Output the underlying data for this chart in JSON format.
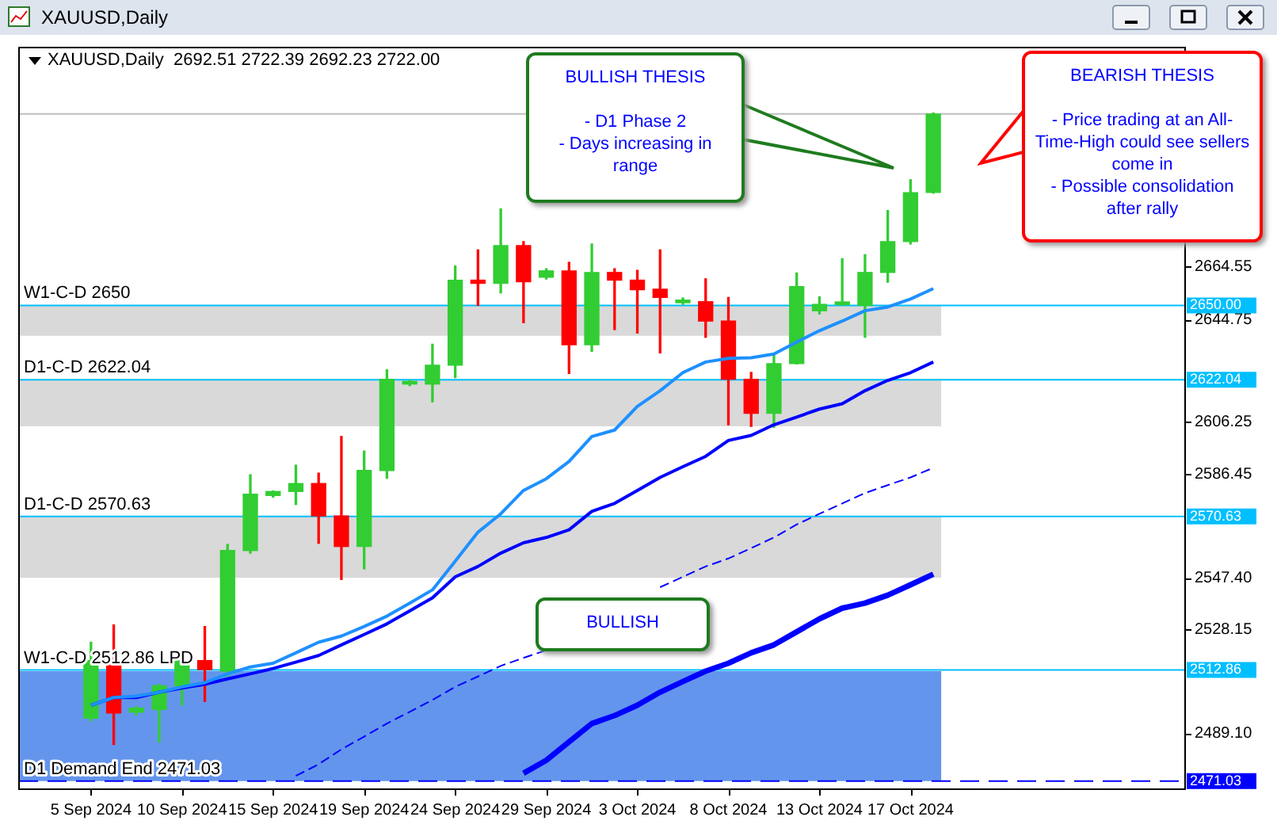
{
  "chart_data": {
    "type": "candlestick",
    "title": "XAUUSD,Daily",
    "subtitle": "XAUUSD,Daily  2692.51 2722.39 2692.23 2722.00",
    "categories": [
      "5 Sep 2024",
      null,
      null,
      null,
      "10 Sep 2024",
      null,
      null,
      null,
      "15 Sep 2024",
      null,
      null,
      null,
      "19 Sep 2024",
      null,
      null,
      null,
      "24 Sep 2024",
      null,
      null,
      null,
      "29 Sep 2024",
      null,
      null,
      null,
      "3 Oct 2024",
      null,
      null,
      null,
      "8 Oct 2024",
      null,
      null,
      null,
      "13 Oct 2024",
      null,
      null,
      null,
      "17 Oct 2024",
      null
    ],
    "ohlc": [
      [
        2494.7,
        2523.3,
        2493.7,
        2516.4
      ],
      [
        2516.4,
        2529.8,
        2484.8,
        2496.7
      ],
      [
        2497.0,
        2499.0,
        2496.0,
        2498.5
      ],
      [
        2498.0,
        2507.5,
        2485.8,
        2506.9
      ],
      [
        2506.9,
        2516.8,
        2499.6,
        2516.4
      ],
      [
        2516.4,
        2529.2,
        2501.0,
        2513.0
      ],
      [
        2512.4,
        2560.1,
        2510.5,
        2557.8
      ],
      [
        2557.8,
        2586.3,
        2556.8,
        2579.0
      ],
      [
        2578.5,
        2580.2,
        2577.9,
        2580.0
      ],
      [
        2580.0,
        2589.9,
        2575.1,
        2583.0
      ],
      [
        2583.0,
        2586.9,
        2560.5,
        2570.8
      ],
      [
        2570.8,
        2600.7,
        2546.9,
        2559.3
      ],
      [
        2559.3,
        2595.2,
        2550.9,
        2587.9
      ],
      [
        2587.9,
        2625.8,
        2585.0,
        2622.2
      ],
      [
        2620.4,
        2621.8,
        2619.8,
        2621.4
      ],
      [
        2620.4,
        2635.4,
        2613.7,
        2627.5
      ],
      [
        2627.5,
        2664.8,
        2622.8,
        2659.5
      ],
      [
        2659.5,
        2670.9,
        2650.0,
        2658.3
      ],
      [
        2658.3,
        2686.3,
        2654.7,
        2672.5
      ],
      [
        2672.5,
        2674.0,
        2643.5,
        2658.9
      ],
      [
        2660.6,
        2663.8,
        2659.9,
        2663.0
      ],
      [
        2663.0,
        2666.2,
        2624.4,
        2635.2
      ],
      [
        2635.2,
        2673.1,
        2632.7,
        2662.4
      ],
      [
        2662.4,
        2663.8,
        2640.9,
        2659.5
      ],
      [
        2659.5,
        2663.2,
        2639.6,
        2655.9
      ],
      [
        2656.1,
        2670.9,
        2632.1,
        2653.0
      ],
      [
        2651.0,
        2652.8,
        2650.4,
        2652.0
      ],
      [
        2651.4,
        2660.0,
        2638.0,
        2644.1
      ],
      [
        2644.1,
        2653.0,
        2605.1,
        2622.2
      ],
      [
        2622.2,
        2624.8,
        2604.5,
        2609.4
      ],
      [
        2609.4,
        2631.7,
        2604.1,
        2628.1
      ],
      [
        2628.1,
        2662.2,
        2628.0,
        2657.1
      ],
      [
        2648.0,
        2653.2,
        2646.8,
        2650.4
      ],
      [
        2650.3,
        2667.6,
        2650.0,
        2651.3
      ],
      [
        2650.0,
        2669.1,
        2638.0,
        2662.4
      ],
      [
        2662.4,
        2685.7,
        2658.7,
        2674.0
      ],
      [
        2674.0,
        2697.3,
        2673.1,
        2692.4
      ],
      [
        2692.51,
        2722.39,
        2692.23,
        2722.0
      ]
    ],
    "colors": [
      "#32cd32",
      "#ff0000",
      "#32cd32",
      "#32cd32",
      "#32cd32",
      "#ff0000",
      "#32cd32",
      "#32cd32",
      "#32cd32",
      "#32cd32",
      "#ff0000",
      "#ff0000",
      "#32cd32",
      "#32cd32",
      "#32cd32",
      "#32cd32",
      "#32cd32",
      "#ff0000",
      "#32cd32",
      "#ff0000",
      "#32cd32",
      "#ff0000",
      "#32cd32",
      "#ff0000",
      "#ff0000",
      "#ff0000",
      "#32cd32",
      "#ff0000",
      "#ff0000",
      "#ff0000",
      "#32cd32",
      "#32cd32",
      "#32cd32",
      "#32cd32",
      "#32cd32",
      "#32cd32",
      "#32cd32",
      "#32cd32"
    ],
    "series": [
      {
        "type": "line",
        "color": "#1e90ff",
        "line_style": "solid",
        "values": [
          2499.6,
          2502.5,
          2503.0,
          2504.5,
          2506.5,
          2508.1,
          2511.4,
          2514.0,
          2515.4,
          2519.3,
          2523.3,
          2525.6,
          2529.2,
          2533.1,
          2538.0,
          2543.0,
          2553.8,
          2564.7,
          2571.6,
          2580.4,
          2584.8,
          2591.3,
          2600.7,
          2603.1,
          2612.0,
          2617.9,
          2624.7,
          2628.7,
          2630.1,
          2630.3,
          2631.7,
          2636.2,
          2640.5,
          2644.1,
          2648.0,
          2649.4,
          2652.4,
          2656.3
        ]
      },
      {
        "type": "line",
        "color": "#0000ff",
        "line_style": "solid",
        "values": [
          2499.6,
          2502.5,
          2502.5,
          2504.5,
          2506.1,
          2507.5,
          2509.5,
          2511.4,
          2513.4,
          2515.8,
          2518.3,
          2522.3,
          2526.2,
          2530.2,
          2535.1,
          2540.0,
          2547.9,
          2551.8,
          2556.8,
          2560.7,
          2562.7,
          2565.6,
          2572.5,
          2575.5,
          2580.4,
          2585.3,
          2589.3,
          2593.2,
          2599.2,
          2601.1,
          2605.1,
          2608.0,
          2611.0,
          2613.0,
          2617.9,
          2621.8,
          2624.7,
          2628.7
        ]
      },
      {
        "type": "line",
        "color": "#0000ff",
        "line_style": "dashed",
        "values": [
          null,
          null,
          null,
          null,
          null,
          null,
          null,
          null,
          null,
          2473.0,
          2477.4,
          2483.0,
          2487.8,
          2492.7,
          2497.1,
          2501.6,
          2506.5,
          2510.4,
          2514.4,
          2517.4,
          2520.3,
          null,
          null,
          null,
          null,
          2544.0,
          2547.9,
          2551.8,
          2554.8,
          2558.7,
          2562.7,
          2567.6,
          2571.6,
          2575.5,
          2579.4,
          2582.4,
          2585.3,
          2588.9
        ]
      },
      {
        "type": "line",
        "color": "#0000ff",
        "line_style": "solid",
        "values": [
          null,
          null,
          null,
          null,
          null,
          null,
          null,
          null,
          null,
          null,
          null,
          null,
          null,
          null,
          null,
          null,
          null,
          null,
          null,
          2474.0,
          2478.9,
          2485.8,
          2492.7,
          2495.7,
          2499.6,
          2504.5,
          2508.5,
          2512.4,
          2515.4,
          2519.3,
          2522.3,
          2527.2,
          2532.1,
          2536.1,
          2538.0,
          2541.0,
          2544.9,
          2548.9
        ]
      }
    ],
    "ylim": [
      2468,
      2747
    ],
    "yticks": [
      {
        "value": 2489.1,
        "label": "2489.10"
      },
      2528.15,
      {
        "value": 2547.4,
        "label": "2547.40"
      },
      2586.45,
      2606.25,
      2644.75,
      2664.55
    ],
    "ref_lines": [
      {
        "axis": "y",
        "value": 2722,
        "color": "#c0c0c0",
        "line_style": "solid"
      },
      {
        "axis": "y",
        "value": 2650,
        "label": "W1-C-D 2650",
        "color": "#00bfff",
        "line_style": "solid"
      },
      {
        "axis": "y",
        "value": 2622.04,
        "label": "D1-C-D 2622.04",
        "color": "#00bfff",
        "line_style": "solid"
      },
      {
        "axis": "y",
        "value": 2570.63,
        "label": "D1-C-D 2570.63",
        "color": "#00bfff",
        "line_style": "solid"
      },
      {
        "axis": "y",
        "value": 2512.86,
        "label": "W1-C-D 2512.86 LPD",
        "color": "#00bfff",
        "line_style": "solid"
      },
      {
        "axis": "y",
        "value": 2471.03,
        "label": "D1 Demand End 2471.03",
        "color": "#0000ff",
        "line_style": "dashed"
      }
    ],
    "bands": [
      {
        "axis": "y",
        "from": 2547.5,
        "to": 2570.63,
        "color": "#d9d9d9"
      },
      {
        "axis": "y",
        "from": 2604.5,
        "to": 2622.04,
        "color": "#d9d9d9"
      },
      {
        "axis": "y",
        "from": 2638.6,
        "to": 2650,
        "color": "#d9d9d9"
      },
      {
        "axis": "y",
        "from": 2471.03,
        "to": 2512.4,
        "color": "#6495ed"
      }
    ],
    "annotations": [
      "BULLISH THESIS\n\n- D1 Phase 2\n- Days increasing in range",
      "BEARISH THESIS\n\n- Price trading at an All-Time-High could see sellers come in\n- Possible consolidation after rally",
      "BULLISH",
      "2650.00",
      "2622.04",
      "2570.63",
      "2512.86",
      "2471.03"
    ],
    "grid": false,
    "legend": false
  }
}
